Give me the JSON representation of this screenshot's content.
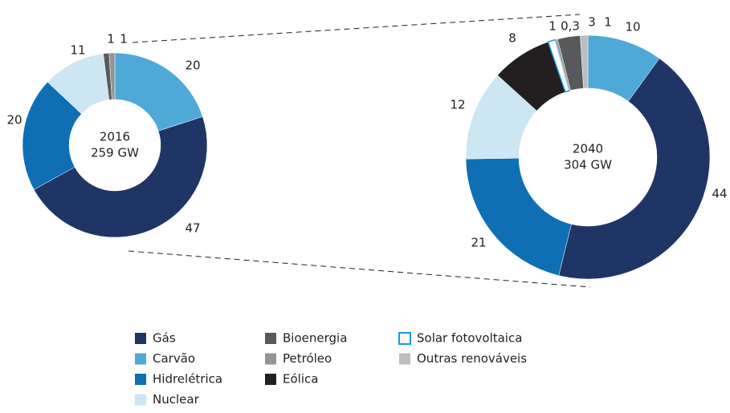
{
  "chart_data": [
    {
      "type": "pie",
      "donut": true,
      "center_labels": [
        "2016",
        "259 GW"
      ],
      "categories": [
        "Carvão",
        "Gás",
        "Hidrelétrica",
        "Nuclear",
        "Bioenergia",
        "Petróleo"
      ],
      "values": [
        20,
        47,
        20,
        11,
        1,
        1
      ]
    },
    {
      "type": "pie",
      "donut": true,
      "center_labels": [
        "2040",
        "304 GW"
      ],
      "categories": [
        "Carvão",
        "Gás",
        "Hidrelétrica",
        "Nuclear",
        "Eólica",
        "Solar fotovoltaica",
        "Petróleo",
        "Bioenergia",
        "Outras renováveis"
      ],
      "values": [
        10,
        44,
        21,
        12,
        8,
        1,
        0.3,
        3,
        1
      ],
      "value_labels": [
        "10",
        "44",
        "21",
        "12",
        "8",
        "1",
        "0,3",
        "3",
        "1"
      ]
    }
  ],
  "legend": [
    {
      "name": "Gás",
      "color": "#1f3566"
    },
    {
      "name": "Carvão",
      "color": "#4fa9d6"
    },
    {
      "name": "Hidrelétrica",
      "color": "#0e6fb5"
    },
    {
      "name": "Nuclear",
      "color": "#cce6f3"
    },
    {
      "name": "Bioenergia",
      "color": "#58595b"
    },
    {
      "name": "Petróleo",
      "color": "#939598"
    },
    {
      "name": "Eólica",
      "color": "#231f20"
    },
    {
      "name": "Solar fotovoltaica",
      "color": "#1a9ad6",
      "outline": true
    },
    {
      "name": "Outras renováveis",
      "color": "#bcbec0"
    }
  ]
}
